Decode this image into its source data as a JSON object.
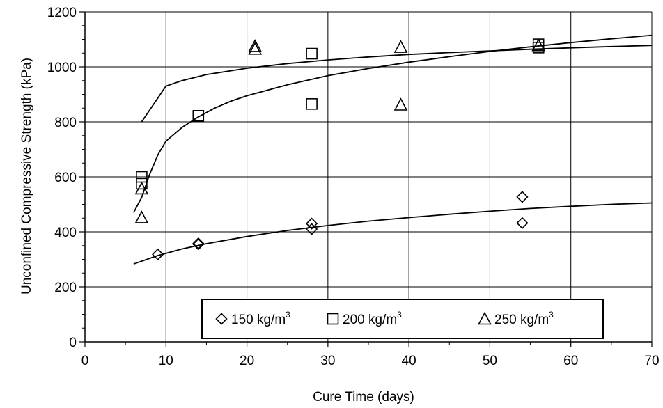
{
  "chart_data": {
    "type": "scatter",
    "title": "",
    "xlabel": "Cure Time (days)",
    "ylabel": "Unconfined Compressive Strength (kPa)",
    "xlim": [
      0,
      70
    ],
    "ylim": [
      0,
      1200
    ],
    "xticks": [
      0,
      10,
      20,
      30,
      40,
      50,
      60,
      70
    ],
    "yticks": [
      0,
      200,
      400,
      600,
      800,
      1000,
      1200
    ],
    "grid": true,
    "legend_position": "lower-right",
    "series": [
      {
        "name": "150 kg/m",
        "unit_sup": "3",
        "marker": "diamond",
        "points": [
          [
            9,
            318
          ],
          [
            14,
            355
          ],
          [
            14,
            358
          ],
          [
            28,
            410
          ],
          [
            28,
            430
          ],
          [
            54,
            432
          ],
          [
            54,
            527
          ]
        ],
        "trend": [
          [
            6,
            283
          ],
          [
            9,
            314
          ],
          [
            12,
            338
          ],
          [
            15,
            357
          ],
          [
            20,
            383
          ],
          [
            25,
            405
          ],
          [
            30,
            423
          ],
          [
            35,
            439
          ],
          [
            40,
            452
          ],
          [
            45,
            464
          ],
          [
            50,
            475
          ],
          [
            55,
            485
          ],
          [
            60,
            493
          ],
          [
            65,
            500
          ],
          [
            70,
            505
          ]
        ]
      },
      {
        "name": "200 kg/m",
        "unit_sup": "3",
        "marker": "square",
        "points": [
          [
            7,
            575
          ],
          [
            7,
            600
          ],
          [
            14,
            822
          ],
          [
            28,
            865
          ],
          [
            28,
            1048
          ],
          [
            56,
            1070
          ],
          [
            56,
            1082
          ]
        ],
        "trend": [
          [
            6,
            470
          ],
          [
            7,
            525
          ],
          [
            8,
            610
          ],
          [
            9,
            680
          ],
          [
            10,
            730
          ],
          [
            12,
            780
          ],
          [
            14,
            818
          ],
          [
            16,
            850
          ],
          [
            18,
            875
          ],
          [
            20,
            895
          ],
          [
            25,
            935
          ],
          [
            30,
            968
          ],
          [
            35,
            994
          ],
          [
            40,
            1017
          ],
          [
            45,
            1037
          ],
          [
            50,
            1056
          ],
          [
            55,
            1073
          ],
          [
            60,
            1088
          ],
          [
            65,
            1102
          ],
          [
            70,
            1115
          ]
        ]
      },
      {
        "name": "250 kg/m",
        "unit_sup": "3",
        "marker": "triangle",
        "points": [
          [
            7,
            452
          ],
          [
            7,
            557
          ],
          [
            21,
            1065
          ],
          [
            21,
            1075
          ],
          [
            39,
            862
          ],
          [
            39,
            1072
          ],
          [
            56,
            1078
          ]
        ],
        "trend": [
          [
            7,
            800
          ],
          [
            10,
            930
          ],
          [
            12,
            950
          ],
          [
            15,
            972
          ],
          [
            20,
            995
          ],
          [
            25,
            1012
          ],
          [
            30,
            1025
          ],
          [
            35,
            1036
          ],
          [
            40,
            1045
          ],
          [
            45,
            1052
          ],
          [
            50,
            1058
          ],
          [
            55,
            1064
          ],
          [
            60,
            1069
          ],
          [
            65,
            1074
          ],
          [
            70,
            1078
          ]
        ]
      }
    ]
  }
}
